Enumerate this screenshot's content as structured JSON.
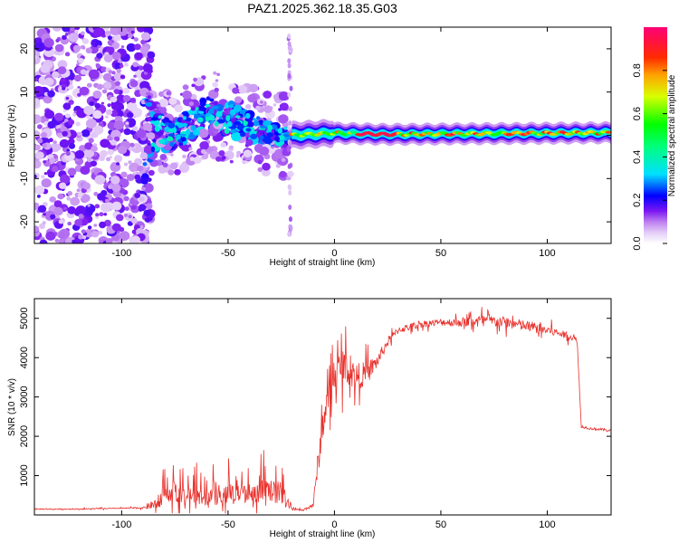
{
  "title": "PAZ1.2025.362.18.35.G03",
  "chart_data": [
    {
      "type": "heatmap",
      "xlabel": "Height of straight line (km)",
      "ylabel": "Frequency (Hz)",
      "xlim": [
        -141,
        130
      ],
      "ylim": [
        -25,
        25
      ],
      "xticks": [
        -100,
        -50,
        0,
        50,
        100
      ],
      "yticks": [
        -20,
        -10,
        0,
        10,
        20
      ],
      "ridge": [
        {
          "x": -141,
          "f": 0,
          "spread": 20
        },
        {
          "x": -90,
          "f": 0,
          "spread": 15
        },
        {
          "x": -85,
          "f": 1,
          "spread": 5
        },
        {
          "x": -75,
          "f": 0,
          "spread": 3
        },
        {
          "x": -60,
          "f": 5,
          "spread": 4
        },
        {
          "x": -50,
          "f": 4,
          "spread": 4
        },
        {
          "x": -40,
          "f": 2,
          "spread": 3
        },
        {
          "x": -30,
          "f": 0,
          "spread": 3
        },
        {
          "x": -20,
          "f": 0,
          "spread": 1.2
        },
        {
          "x": 0,
          "f": 0.5,
          "spread": 0.8
        },
        {
          "x": 25,
          "f": 0.2,
          "spread": 0.5
        },
        {
          "x": 130,
          "f": 0.6,
          "spread": 0.5
        }
      ],
      "colorbar": {
        "label": "Normalized spectral amplitude",
        "range": [
          0,
          1
        ],
        "ticks": [
          {
            "value": 0.0,
            "label": "0.0"
          },
          {
            "value": 0.2,
            "label": "0.2"
          },
          {
            "value": 0.4,
            "label": "0.4"
          },
          {
            "value": 0.6,
            "label": "0.6"
          },
          {
            "value": 0.8,
            "label": "0.8"
          }
        ]
      }
    },
    {
      "type": "line",
      "xlabel": "Height of straight line (km)",
      "ylabel": "SNR (10 * v/v)",
      "xlim": [
        -141,
        130
      ],
      "ylim": [
        0,
        5500
      ],
      "xticks": [
        -100,
        -50,
        0,
        50,
        100
      ],
      "yticks": [
        1000,
        2000,
        3000,
        4000,
        5000
      ],
      "series": [
        {
          "name": "SNR",
          "color": "#e8312c",
          "x": [
            -141,
            -120,
            -100,
            -90,
            -85,
            -80,
            -75,
            -70,
            -60,
            -50,
            -40,
            -30,
            -25,
            -20,
            -15,
            -10,
            -8,
            -5,
            0,
            5,
            10,
            15,
            20,
            25,
            30,
            40,
            50,
            60,
            70,
            80,
            90,
            100,
            110,
            114,
            116,
            120,
            130
          ],
          "y": [
            150,
            150,
            170,
            180,
            260,
            450,
            600,
            500,
            450,
            500,
            550,
            600,
            550,
            150,
            120,
            250,
            1200,
            2500,
            3600,
            3800,
            3500,
            3600,
            3900,
            4400,
            4700,
            4850,
            4900,
            4900,
            4950,
            4900,
            4800,
            4700,
            4550,
            4450,
            2250,
            2200,
            2150
          ],
          "noise": [
            20,
            20,
            20,
            30,
            200,
            400,
            450,
            350,
            350,
            400,
            400,
            450,
            500,
            40,
            30,
            100,
            500,
            700,
            800,
            700,
            600,
            500,
            300,
            200,
            150,
            150,
            150,
            200,
            250,
            250,
            250,
            200,
            150,
            100,
            60,
            50,
            50
          ]
        }
      ]
    }
  ]
}
